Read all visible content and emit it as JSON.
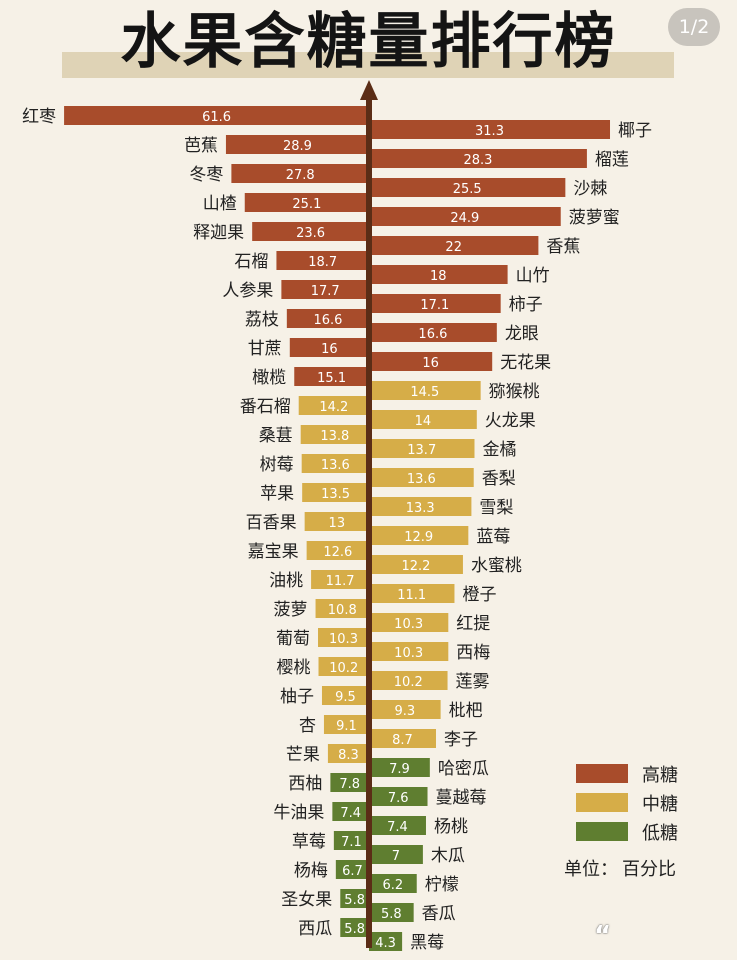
{
  "page": {
    "title": "水果含糖量排行榜",
    "page_indicator": "1/2",
    "watermark": "“"
  },
  "colors": {
    "high": "#a84c2b",
    "mid": "#d6ad48",
    "low": "#5f7e30",
    "axis": "#5b2d16"
  },
  "legend": [
    {
      "key": "high",
      "label": "高糖"
    },
    {
      "key": "mid",
      "label": "中糖"
    },
    {
      "key": "low",
      "label": "低糖"
    }
  ],
  "unit": {
    "label": "单位：",
    "value": "百分比"
  },
  "chart_data": {
    "type": "bar",
    "orientation": "diverging-horizontal",
    "title": "水果含糖量排行榜",
    "unit": "百分比",
    "series": [
      {
        "side": "left",
        "items": [
          {
            "name": "红枣",
            "value": 61.6,
            "level": "high"
          },
          {
            "name": "芭蕉",
            "value": 28.9,
            "level": "high"
          },
          {
            "name": "冬枣",
            "value": 27.8,
            "level": "high"
          },
          {
            "name": "山楂",
            "value": 25.1,
            "level": "high"
          },
          {
            "name": "释迦果",
            "value": 23.6,
            "level": "high"
          },
          {
            "name": "石榴",
            "value": 18.7,
            "level": "high"
          },
          {
            "name": "人参果",
            "value": 17.7,
            "level": "high"
          },
          {
            "name": "荔枝",
            "value": 16.6,
            "level": "high"
          },
          {
            "name": "甘蔗",
            "value": 16,
            "level": "high"
          },
          {
            "name": "橄榄",
            "value": 15.1,
            "level": "high"
          },
          {
            "name": "番石榴",
            "value": 14.2,
            "level": "mid"
          },
          {
            "name": "桑葚",
            "value": 13.8,
            "level": "mid"
          },
          {
            "name": "树莓",
            "value": 13.6,
            "level": "mid"
          },
          {
            "name": "苹果",
            "value": 13.5,
            "level": "mid"
          },
          {
            "name": "百香果",
            "value": 13,
            "level": "mid"
          },
          {
            "name": "嘉宝果",
            "value": 12.6,
            "level": "mid"
          },
          {
            "name": "油桃",
            "value": 11.7,
            "level": "mid"
          },
          {
            "name": "菠萝",
            "value": 10.8,
            "level": "mid"
          },
          {
            "name": "葡萄",
            "value": 10.3,
            "level": "mid"
          },
          {
            "name": "樱桃",
            "value": 10.2,
            "level": "mid"
          },
          {
            "name": "柚子",
            "value": 9.5,
            "level": "mid"
          },
          {
            "name": "杏",
            "value": 9.1,
            "level": "mid"
          },
          {
            "name": "芒果",
            "value": 8.3,
            "level": "mid"
          },
          {
            "name": "西柚",
            "value": 7.8,
            "level": "low"
          },
          {
            "name": "牛油果",
            "value": 7.4,
            "level": "low"
          },
          {
            "name": "草莓",
            "value": 7.1,
            "level": "low"
          },
          {
            "name": "杨梅",
            "value": 6.7,
            "level": "low"
          },
          {
            "name": "圣女果",
            "value": 5.8,
            "level": "low"
          },
          {
            "name": "西瓜",
            "value": 5.8,
            "level": "low"
          }
        ]
      },
      {
        "side": "right",
        "items": [
          {
            "name": "椰子",
            "value": 31.3,
            "level": "high"
          },
          {
            "name": "榴莲",
            "value": 28.3,
            "level": "high"
          },
          {
            "name": "沙棘",
            "value": 25.5,
            "level": "high"
          },
          {
            "name": "菠萝蜜",
            "value": 24.9,
            "level": "high"
          },
          {
            "name": "香蕉",
            "value": 22,
            "level": "high"
          },
          {
            "name": "山竹",
            "value": 18,
            "level": "high"
          },
          {
            "name": "柿子",
            "value": 17.1,
            "level": "high"
          },
          {
            "name": "龙眼",
            "value": 16.6,
            "level": "high"
          },
          {
            "name": "无花果",
            "value": 16,
            "level": "high"
          },
          {
            "name": "猕猴桃",
            "value": 14.5,
            "level": "mid"
          },
          {
            "name": "火龙果",
            "value": 14,
            "level": "mid"
          },
          {
            "name": "金橘",
            "value": 13.7,
            "level": "mid"
          },
          {
            "name": "香梨",
            "value": 13.6,
            "level": "mid"
          },
          {
            "name": "雪梨",
            "value": 13.3,
            "level": "mid"
          },
          {
            "name": "蓝莓",
            "value": 12.9,
            "level": "mid"
          },
          {
            "name": "水蜜桃",
            "value": 12.2,
            "level": "mid"
          },
          {
            "name": "橙子",
            "value": 11.1,
            "level": "mid"
          },
          {
            "name": "红提",
            "value": 10.3,
            "level": "mid"
          },
          {
            "name": "西梅",
            "value": 10.3,
            "level": "mid"
          },
          {
            "name": "莲雾",
            "value": 10.2,
            "level": "mid"
          },
          {
            "name": "枇杷",
            "value": 9.3,
            "level": "mid"
          },
          {
            "name": "李子",
            "value": 8.7,
            "level": "mid"
          },
          {
            "name": "哈密瓜",
            "value": 7.9,
            "level": "low"
          },
          {
            "name": "蔓越莓",
            "value": 7.6,
            "level": "low"
          },
          {
            "name": "杨桃",
            "value": 7.4,
            "level": "low"
          },
          {
            "name": "木瓜",
            "value": 7,
            "level": "low"
          },
          {
            "name": "柠檬",
            "value": 6.2,
            "level": "low"
          },
          {
            "name": "香瓜",
            "value": 5.8,
            "level": "low"
          },
          {
            "name": "黑莓",
            "value": 4.3,
            "level": "low"
          }
        ]
      }
    ]
  }
}
